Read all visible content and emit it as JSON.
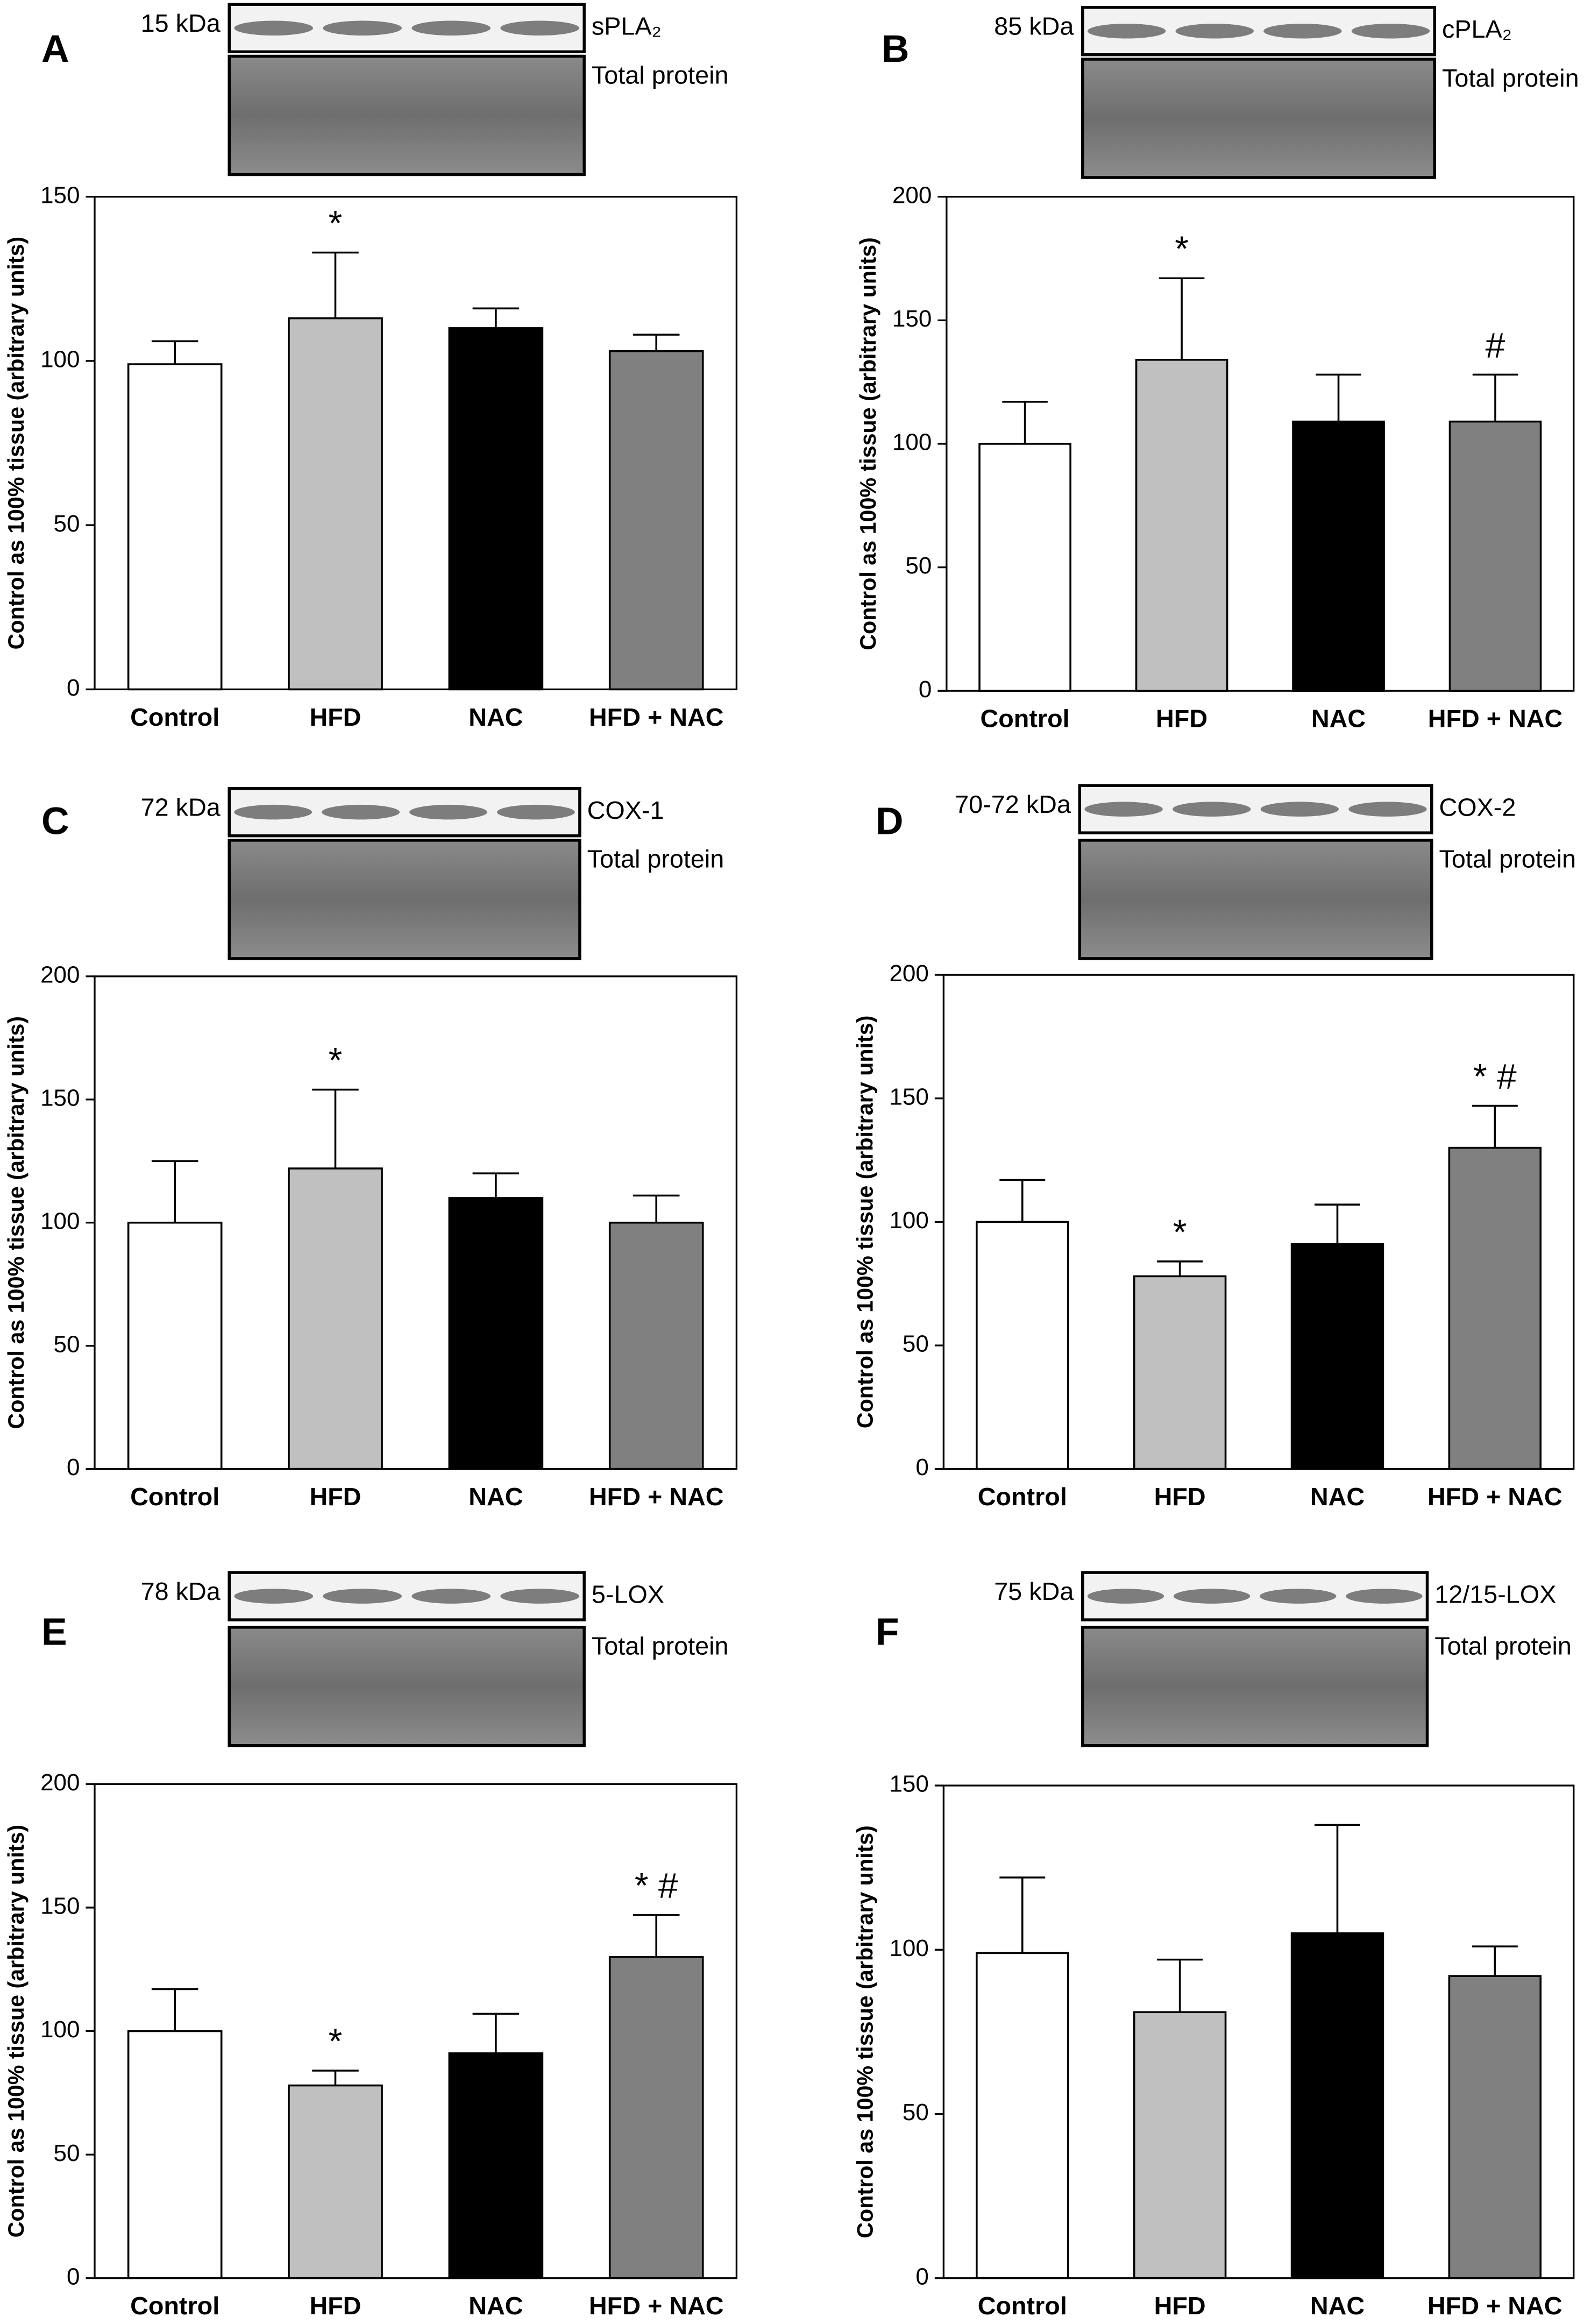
{
  "chart_data": [
    {
      "type": "bar",
      "panel": "A",
      "kda": "15 kDa",
      "band": "sPLA₂",
      "total": "Total protein",
      "ylabel": "Control as 100% tissue (arbitrary units)",
      "categories": [
        "Control",
        "HFD",
        "NAC",
        "HFD + NAC"
      ],
      "colors": [
        "#ffffff",
        "#c0c0c0",
        "#000000",
        "#808080"
      ],
      "values": [
        99,
        113,
        110,
        103
      ],
      "errors": [
        7,
        20,
        6,
        5
      ],
      "annotations": [
        null,
        "*",
        null,
        null
      ],
      "ylim": [
        0,
        150
      ],
      "yticks": [
        0,
        50,
        100,
        150
      ]
    },
    {
      "type": "bar",
      "panel": "B",
      "kda": "85 kDa",
      "band": "cPLA₂",
      "total": "Total protein",
      "ylabel": "Control as 100% tissue (arbitrary units)",
      "categories": [
        "Control",
        "HFD",
        "NAC",
        "HFD + NAC"
      ],
      "colors": [
        "#ffffff",
        "#c0c0c0",
        "#000000",
        "#808080"
      ],
      "values": [
        100,
        134,
        109,
        109
      ],
      "errors": [
        17,
        33,
        19,
        19
      ],
      "annotations": [
        null,
        "*",
        null,
        "#"
      ],
      "ylim": [
        0,
        200
      ],
      "yticks": [
        0,
        50,
        100,
        150,
        200
      ]
    },
    {
      "type": "bar",
      "panel": "C",
      "kda": "72 kDa",
      "band": "COX-1",
      "total": "Total protein",
      "ylabel": "Control as 100% tissue (arbitrary units)",
      "categories": [
        "Control",
        "HFD",
        "NAC",
        "HFD + NAC"
      ],
      "colors": [
        "#ffffff",
        "#c0c0c0",
        "#000000",
        "#808080"
      ],
      "values": [
        100,
        122,
        110,
        100
      ],
      "errors": [
        25,
        32,
        10,
        11
      ],
      "annotations": [
        null,
        "*",
        null,
        null
      ],
      "ylim": [
        0,
        200
      ],
      "yticks": [
        0,
        50,
        100,
        150,
        200
      ]
    },
    {
      "type": "bar",
      "panel": "D",
      "kda": "70-72 kDa",
      "band": "COX-2",
      "total": "Total protein",
      "ylabel": "Control as 100% tissue (arbitrary units)",
      "categories": [
        "Control",
        "HFD",
        "NAC",
        "HFD + NAC"
      ],
      "colors": [
        "#ffffff",
        "#c0c0c0",
        "#000000",
        "#808080"
      ],
      "values": [
        100,
        78,
        91,
        130
      ],
      "errors": [
        17,
        6,
        16,
        17
      ],
      "annotations": [
        null,
        "*",
        null,
        "* #"
      ],
      "ylim": [
        0,
        200
      ],
      "yticks": [
        0,
        50,
        100,
        150,
        200
      ]
    },
    {
      "type": "bar",
      "panel": "E",
      "kda": "78 kDa",
      "band": "5-LOX",
      "total": "Total protein",
      "ylabel": "Control as 100% tissue (arbitrary units)",
      "categories": [
        "Control",
        "HFD",
        "NAC",
        "HFD + NAC"
      ],
      "colors": [
        "#ffffff",
        "#c0c0c0",
        "#000000",
        "#808080"
      ],
      "values": [
        100,
        78,
        91,
        130
      ],
      "errors": [
        17,
        6,
        16,
        17
      ],
      "annotations": [
        null,
        "*",
        null,
        "* #"
      ],
      "ylim": [
        0,
        200
      ],
      "yticks": [
        0,
        50,
        100,
        150,
        200
      ]
    },
    {
      "type": "bar",
      "panel": "F",
      "kda": "75 kDa",
      "band": "12/15-LOX",
      "total": "Total protein",
      "ylabel": "Control as 100% tissue (arbitrary units)",
      "categories": [
        "Control",
        "HFD",
        "NAC",
        "HFD + NAC"
      ],
      "colors": [
        "#ffffff",
        "#c0c0c0",
        "#000000",
        "#808080"
      ],
      "values": [
        99,
        81,
        105,
        92
      ],
      "errors": [
        23,
        16,
        33,
        9
      ],
      "annotations": [
        null,
        null,
        null,
        null
      ],
      "ylim": [
        0,
        150
      ],
      "yticks": [
        0,
        50,
        100,
        150
      ]
    }
  ]
}
